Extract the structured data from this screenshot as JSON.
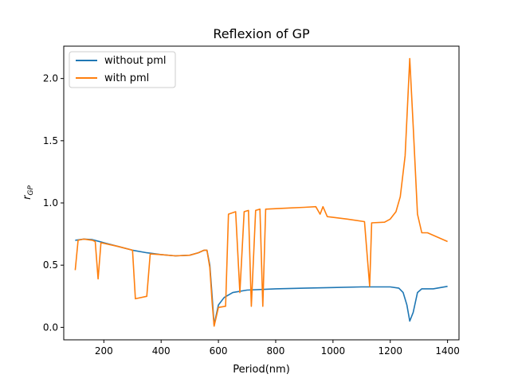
{
  "chart_data": {
    "type": "line",
    "title": "Reflexion of GP",
    "xlabel": "Period(nm)",
    "ylabel": "r",
    "ylabel_subscript": "GP",
    "xlim": [
      60,
      1440
    ],
    "ylim": [
      -0.1,
      2.26
    ],
    "xticks": [
      200,
      400,
      600,
      800,
      1000,
      1200,
      1400
    ],
    "yticks": [
      0.0,
      0.5,
      1.0,
      1.5,
      2.0
    ],
    "xtick_labels": [
      "200",
      "400",
      "600",
      "800",
      "1000",
      "1200",
      "1400"
    ],
    "ytick_labels": [
      "0.0",
      "0.5",
      "1.0",
      "1.5",
      "2.0"
    ],
    "grid": false,
    "legend_position": "upper-left",
    "series": [
      {
        "name": "without pml",
        "color": "#1f77b4",
        "points": [
          [
            100,
            0.7
          ],
          [
            130,
            0.71
          ],
          [
            160,
            0.705
          ],
          [
            200,
            0.68
          ],
          [
            250,
            0.65
          ],
          [
            300,
            0.62
          ],
          [
            350,
            0.6
          ],
          [
            400,
            0.585
          ],
          [
            450,
            0.575
          ],
          [
            500,
            0.58
          ],
          [
            530,
            0.6
          ],
          [
            550,
            0.62
          ],
          [
            560,
            0.62
          ],
          [
            570,
            0.5
          ],
          [
            578,
            0.25
          ],
          [
            585,
            0.02
          ],
          [
            600,
            0.18
          ],
          [
            620,
            0.24
          ],
          [
            650,
            0.28
          ],
          [
            700,
            0.3
          ],
          [
            800,
            0.31
          ],
          [
            900,
            0.315
          ],
          [
            1000,
            0.32
          ],
          [
            1100,
            0.325
          ],
          [
            1150,
            0.325
          ],
          [
            1200,
            0.325
          ],
          [
            1230,
            0.315
          ],
          [
            1245,
            0.28
          ],
          [
            1258,
            0.18
          ],
          [
            1268,
            0.05
          ],
          [
            1280,
            0.12
          ],
          [
            1295,
            0.28
          ],
          [
            1310,
            0.31
          ],
          [
            1350,
            0.31
          ],
          [
            1400,
            0.33
          ]
        ]
      },
      {
        "name": "with pml",
        "color": "#ff7f0e",
        "points": [
          [
            100,
            0.46
          ],
          [
            110,
            0.7
          ],
          [
            130,
            0.71
          ],
          [
            160,
            0.7
          ],
          [
            170,
            0.69
          ],
          [
            180,
            0.39
          ],
          [
            190,
            0.68
          ],
          [
            250,
            0.65
          ],
          [
            300,
            0.62
          ],
          [
            310,
            0.23
          ],
          [
            350,
            0.25
          ],
          [
            362,
            0.59
          ],
          [
            400,
            0.585
          ],
          [
            450,
            0.575
          ],
          [
            500,
            0.58
          ],
          [
            530,
            0.6
          ],
          [
            550,
            0.62
          ],
          [
            560,
            0.62
          ],
          [
            570,
            0.48
          ],
          [
            578,
            0.2
          ],
          [
            585,
            0.01
          ],
          [
            600,
            0.16
          ],
          [
            625,
            0.17
          ],
          [
            635,
            0.91
          ],
          [
            660,
            0.93
          ],
          [
            675,
            0.28
          ],
          [
            690,
            0.93
          ],
          [
            705,
            0.94
          ],
          [
            715,
            0.17
          ],
          [
            730,
            0.94
          ],
          [
            745,
            0.95
          ],
          [
            755,
            0.17
          ],
          [
            765,
            0.95
          ],
          [
            850,
            0.96
          ],
          [
            900,
            0.965
          ],
          [
            940,
            0.97
          ],
          [
            955,
            0.91
          ],
          [
            965,
            0.97
          ],
          [
            980,
            0.89
          ],
          [
            1050,
            0.87
          ],
          [
            1110,
            0.85
          ],
          [
            1128,
            0.33
          ],
          [
            1135,
            0.84
          ],
          [
            1180,
            0.845
          ],
          [
            1200,
            0.87
          ],
          [
            1220,
            0.93
          ],
          [
            1235,
            1.05
          ],
          [
            1252,
            1.38
          ],
          [
            1268,
            2.16
          ],
          [
            1280,
            1.62
          ],
          [
            1295,
            0.91
          ],
          [
            1310,
            0.76
          ],
          [
            1330,
            0.76
          ],
          [
            1400,
            0.69
          ]
        ]
      }
    ]
  }
}
